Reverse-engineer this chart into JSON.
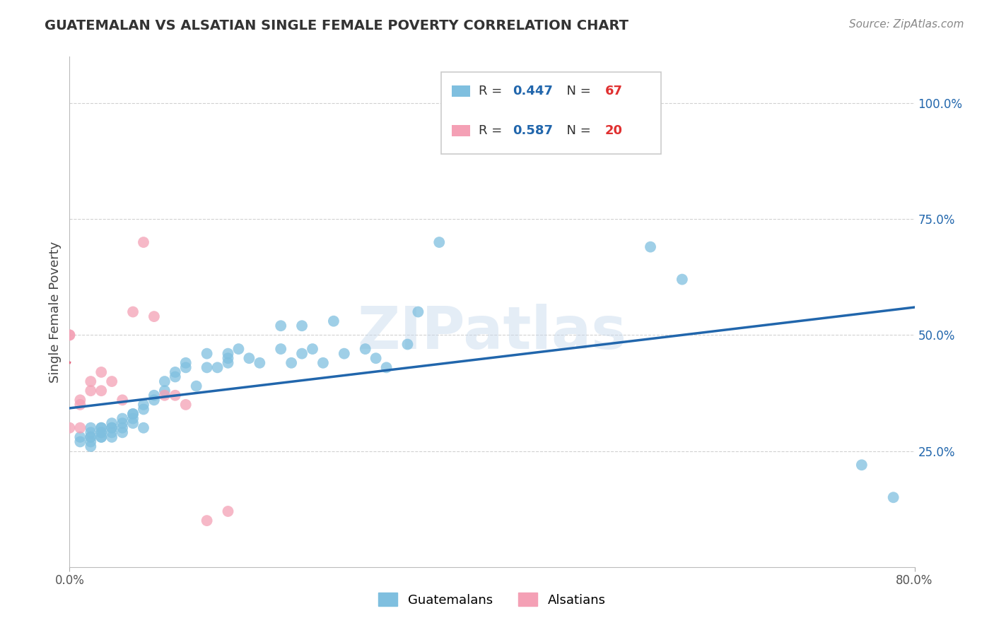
{
  "title": "GUATEMALAN VS ALSATIAN SINGLE FEMALE POVERTY CORRELATION CHART",
  "source": "Source: ZipAtlas.com",
  "ylabel": "Single Female Poverty",
  "xlim": [
    0.0,
    0.8
  ],
  "ylim": [
    0.0,
    1.1
  ],
  "yticks": [
    0.25,
    0.5,
    0.75,
    1.0
  ],
  "yticklabels": [
    "25.0%",
    "50.0%",
    "75.0%",
    "100.0%"
  ],
  "blue_color": "#7fbfdf",
  "pink_color": "#f4a0b5",
  "blue_line_color": "#2166ac",
  "pink_line_color": "#e0607a",
  "R_blue": 0.447,
  "N_blue": 67,
  "R_pink": 0.587,
  "N_pink": 20,
  "watermark": "ZIPatlas",
  "guatemalan_x": [
    0.01,
    0.01,
    0.02,
    0.02,
    0.02,
    0.02,
    0.02,
    0.02,
    0.03,
    0.03,
    0.03,
    0.03,
    0.03,
    0.03,
    0.04,
    0.04,
    0.04,
    0.04,
    0.04,
    0.05,
    0.05,
    0.05,
    0.05,
    0.06,
    0.06,
    0.06,
    0.06,
    0.07,
    0.07,
    0.07,
    0.08,
    0.08,
    0.09,
    0.09,
    0.1,
    0.1,
    0.11,
    0.11,
    0.12,
    0.13,
    0.13,
    0.14,
    0.15,
    0.15,
    0.15,
    0.16,
    0.17,
    0.18,
    0.2,
    0.2,
    0.21,
    0.22,
    0.22,
    0.23,
    0.24,
    0.25,
    0.26,
    0.28,
    0.29,
    0.3,
    0.32,
    0.33,
    0.35,
    0.55,
    0.58,
    0.75,
    0.78
  ],
  "guatemalan_y": [
    0.28,
    0.27,
    0.28,
    0.27,
    0.29,
    0.3,
    0.28,
    0.26,
    0.3,
    0.29,
    0.28,
    0.3,
    0.28,
    0.29,
    0.3,
    0.31,
    0.29,
    0.3,
    0.28,
    0.3,
    0.31,
    0.32,
    0.29,
    0.33,
    0.32,
    0.31,
    0.33,
    0.35,
    0.34,
    0.3,
    0.37,
    0.36,
    0.4,
    0.38,
    0.42,
    0.41,
    0.43,
    0.44,
    0.39,
    0.43,
    0.46,
    0.43,
    0.44,
    0.45,
    0.46,
    0.47,
    0.45,
    0.44,
    0.47,
    0.52,
    0.44,
    0.46,
    0.52,
    0.47,
    0.44,
    0.53,
    0.46,
    0.47,
    0.45,
    0.43,
    0.48,
    0.55,
    0.7,
    0.69,
    0.62,
    0.22,
    0.15
  ],
  "alsatian_x": [
    0.0,
    0.0,
    0.0,
    0.01,
    0.01,
    0.01,
    0.02,
    0.02,
    0.03,
    0.03,
    0.04,
    0.05,
    0.06,
    0.07,
    0.08,
    0.09,
    0.1,
    0.11,
    0.13,
    0.15
  ],
  "alsatian_y": [
    0.3,
    0.5,
    0.5,
    0.36,
    0.35,
    0.3,
    0.4,
    0.38,
    0.42,
    0.38,
    0.4,
    0.36,
    0.55,
    0.7,
    0.54,
    0.37,
    0.37,
    0.35,
    0.1,
    0.12
  ]
}
